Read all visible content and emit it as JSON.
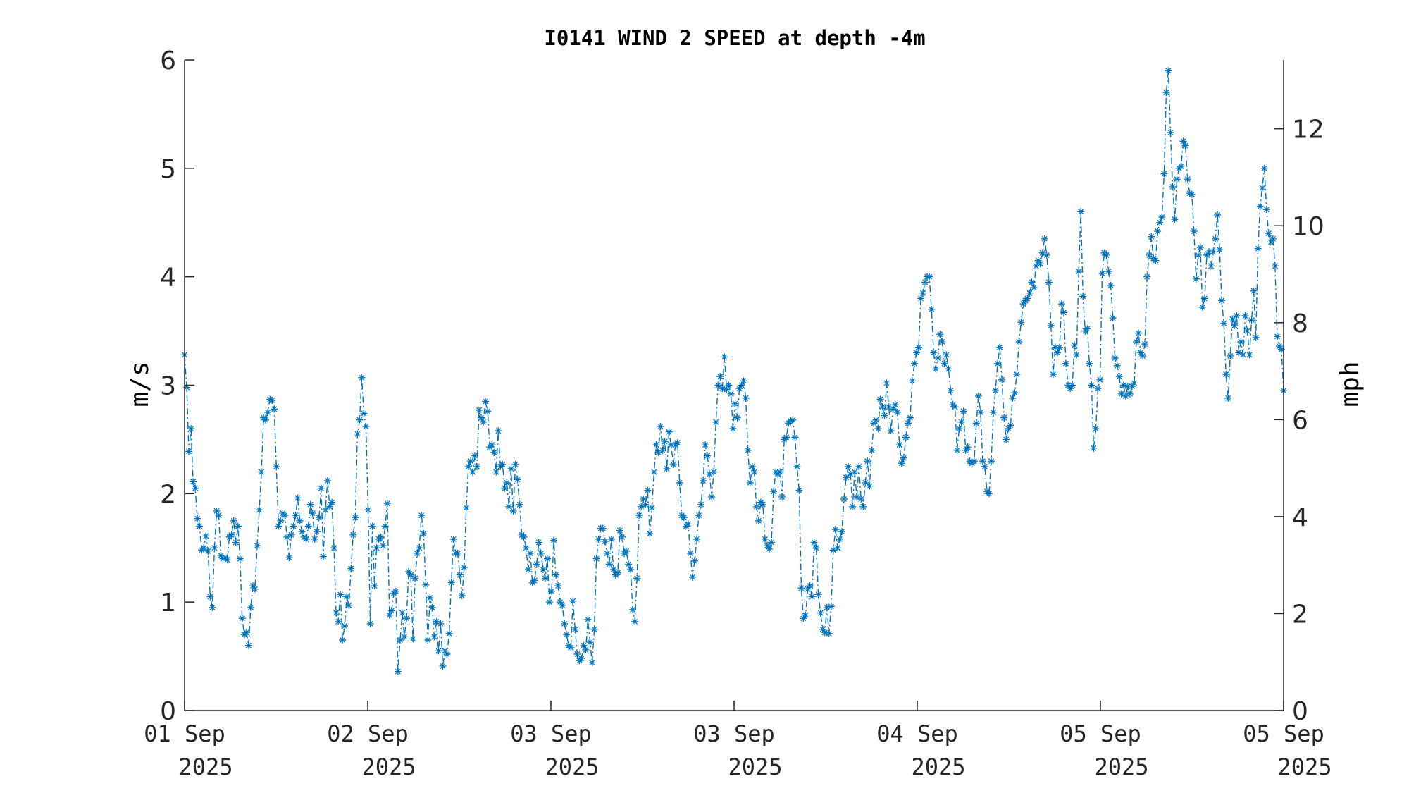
{
  "chart_data": {
    "type": "line",
    "title": "I0141 WIND 2 SPEED at depth -4m",
    "ylabel": "m/s",
    "ylabel_right": "mph",
    "ylim": [
      0,
      6
    ],
    "ylim_right": [
      0,
      13.42
    ],
    "yticks": [
      0,
      1,
      2,
      3,
      4,
      5,
      6
    ],
    "yticks_right": [
      0,
      2,
      4,
      6,
      8,
      10,
      12
    ],
    "x_tick_labels": [
      {
        "line1": "01 Sep",
        "line2": "2025"
      },
      {
        "line1": "02 Sep",
        "line2": "2025"
      },
      {
        "line1": "03 Sep",
        "line2": "2025"
      },
      {
        "line1": "03 Sep",
        "line2": "2025"
      },
      {
        "line1": "04 Sep",
        "line2": "2025"
      },
      {
        "line1": "05 Sep",
        "line2": "2025"
      },
      {
        "line1": "05 Sep",
        "line2": "2025"
      }
    ],
    "line_style": "dash-dot",
    "marker": "asterisk",
    "color": "#0072bd",
    "grid": false,
    "series": [
      {
        "values": [
          3.28,
          2.98,
          2.39,
          2.6,
          2.11,
          2.05,
          1.77,
          1.7,
          1.48,
          1.5,
          1.61,
          1.47,
          1.05,
          0.95,
          1.5,
          1.84,
          1.8,
          1.43,
          1.4,
          1.41,
          1.39,
          1.6,
          1.62,
          1.75,
          1.55,
          1.7,
          1.4,
          0.85,
          0.7,
          0.72,
          0.6,
          0.95,
          1.15,
          1.12,
          1.52,
          1.85,
          2.2,
          2.7,
          2.68,
          2.75,
          2.87,
          2.86,
          2.78,
          2.25,
          1.7,
          1.75,
          1.82,
          1.8,
          1.6,
          1.41,
          1.62,
          1.7,
          1.8,
          1.96,
          1.75,
          1.65,
          1.6,
          1.58,
          1.7,
          1.9,
          1.82,
          1.58,
          1.65,
          1.78,
          2.05,
          1.42,
          1.85,
          2.12,
          1.88,
          1.92,
          1.5,
          0.9,
          0.82,
          1.07,
          0.65,
          0.78,
          1.05,
          0.97,
          1.31,
          1.62,
          1.78,
          2.55,
          2.68,
          3.07,
          2.74,
          2.62,
          1.85,
          0.8,
          1.7,
          1.15,
          1.5,
          1.58,
          1.6,
          1.52,
          1.7,
          1.91,
          0.88,
          0.92,
          1.08,
          1.1,
          0.36,
          0.65,
          0.9,
          0.68,
          0.85,
          1.28,
          1.25,
          0.66,
          1.22,
          1.45,
          1.5,
          1.8,
          1.63,
          1.16,
          0.65,
          1.04,
          0.95,
          0.68,
          0.82,
          0.55,
          0.8,
          0.41,
          0.55,
          0.52,
          0.71,
          1.18,
          1.58,
          1.45,
          1.45,
          1.25,
          1.06,
          1.32,
          1.87,
          2.25,
          2.3,
          2.2,
          2.35,
          2.25,
          2.77,
          2.7,
          2.66,
          2.85,
          2.76,
          2.43,
          2.45,
          2.38,
          2.2,
          2.58,
          2.25,
          2.27,
          2.05,
          2.1,
          1.88,
          2.23,
          1.84,
          2.27,
          2.13,
          1.9,
          1.62,
          1.6,
          1.5,
          1.3,
          1.45,
          1.18,
          1.2,
          1.35,
          1.55,
          1.45,
          1.3,
          1.22,
          1.4,
          1.0,
          1.1,
          1.57,
          1.25,
          1.15,
          1.0,
          0.97,
          0.8,
          0.7,
          0.6,
          0.58,
          1.01,
          0.75,
          0.52,
          0.46,
          0.48,
          0.6,
          0.56,
          0.84,
          0.63,
          0.44,
          0.75,
          1.4,
          1.58,
          1.68,
          1.68,
          1.56,
          1.45,
          1.35,
          1.58,
          1.3,
          1.25,
          1.27,
          1.66,
          1.6,
          1.45,
          1.47,
          1.35,
          1.3,
          0.93,
          0.82,
          1.22,
          1.8,
          1.88,
          1.95,
          1.9,
          2.03,
          1.63,
          1.87,
          2.2,
          2.45,
          2.38,
          2.62,
          2.4,
          2.48,
          2.23,
          2.57,
          2.45,
          2.27,
          2.45,
          2.47,
          2.1,
          1.8,
          1.78,
          1.7,
          1.72,
          1.45,
          1.23,
          1.38,
          1.58,
          1.8,
          1.9,
          2.12,
          2.45,
          2.35,
          2.18,
          1.97,
          2.2,
          2.66,
          3.0,
          3.08,
          2.97,
          3.26,
          2.96,
          3.0,
          2.92,
          2.6,
          2.83,
          2.7,
          2.97,
          3.0,
          3.04,
          2.88,
          2.4,
          2.1,
          2.25,
          2.2,
          1.88,
          1.75,
          1.92,
          1.9,
          1.58,
          1.52,
          1.49,
          1.55,
          2.02,
          2.2,
          2.18,
          2.2,
          1.97,
          2.5,
          2.52,
          2.65,
          2.67,
          2.68,
          2.52,
          2.25,
          2.03,
          1.13,
          0.85,
          0.88,
          1.12,
          1.15,
          1.05,
          1.55,
          1.5,
          1.07,
          0.9,
          0.75,
          0.72,
          0.95,
          0.71,
          0.96,
          1.48,
          1.67,
          1.5,
          1.58,
          1.65,
          1.95,
          2.15,
          2.25,
          2.18,
          1.88,
          2.2,
          1.97,
          2.25,
          1.95,
          1.88,
          2.1,
          2.3,
          2.07,
          2.4,
          2.65,
          2.68,
          2.6,
          2.87,
          2.8,
          2.72,
          3.02,
          2.8,
          2.58,
          2.78,
          2.82,
          2.75,
          2.45,
          2.28,
          2.33,
          2.52,
          2.65,
          2.7,
          3.04,
          3.2,
          3.3,
          3.35,
          3.8,
          3.85,
          3.95,
          4.0,
          4.0,
          3.7,
          3.3,
          3.15,
          3.25,
          3.47,
          3.4,
          3.2,
          3.28,
          3.15,
          2.95,
          2.82,
          2.8,
          2.4,
          2.6,
          2.66,
          2.76,
          2.4,
          2.43,
          2.3,
          2.28,
          2.3,
          2.65,
          2.9,
          2.75,
          2.3,
          2.25,
          2.02,
          2.0,
          2.3,
          2.75,
          2.95,
          3.2,
          3.35,
          3.05,
          2.7,
          2.5,
          2.6,
          2.63,
          2.88,
          2.93,
          3.1,
          3.4,
          3.58,
          3.75,
          3.78,
          3.8,
          3.85,
          3.95,
          3.9,
          4.1,
          4.15,
          4.12,
          4.22,
          4.35,
          4.2,
          3.95,
          3.55,
          3.1,
          3.35,
          3.3,
          3.35,
          3.75,
          3.67,
          3.2,
          3.0,
          2.97,
          3.0,
          3.37,
          3.28,
          4.05,
          4.6,
          3.82,
          3.5,
          3.52,
          3.2,
          3.0,
          2.42,
          2.6,
          2.97,
          3.05,
          4.03,
          4.22,
          4.2,
          4.05,
          3.92,
          3.62,
          3.25,
          3.18,
          3.08,
          2.92,
          3.0,
          2.9,
          2.99,
          2.92,
          2.99,
          3.02,
          3.4,
          3.48,
          3.3,
          3.27,
          3.38,
          4.0,
          4.2,
          4.37,
          4.17,
          4.15,
          4.42,
          4.5,
          4.55,
          4.95,
          5.7,
          5.9,
          5.33,
          4.83,
          4.53,
          4.9,
          5.0,
          5.02,
          5.25,
          5.21,
          4.9,
          4.77,
          4.76,
          4.42,
          3.98,
          4.2,
          4.27,
          3.72,
          3.8,
          4.2,
          4.23,
          4.1,
          4.23,
          4.35,
          4.57,
          4.25,
          3.78,
          3.57,
          3.1,
          2.88,
          3.27,
          3.61,
          3.55,
          3.64,
          3.3,
          3.4,
          3.28,
          3.64,
          3.5,
          3.28,
          3.6,
          3.87,
          3.44,
          4.26,
          4.65,
          4.82,
          5.0,
          4.62,
          4.4,
          4.32,
          4.35,
          4.1,
          3.45,
          3.36,
          3.33,
          2.95
        ]
      }
    ]
  }
}
